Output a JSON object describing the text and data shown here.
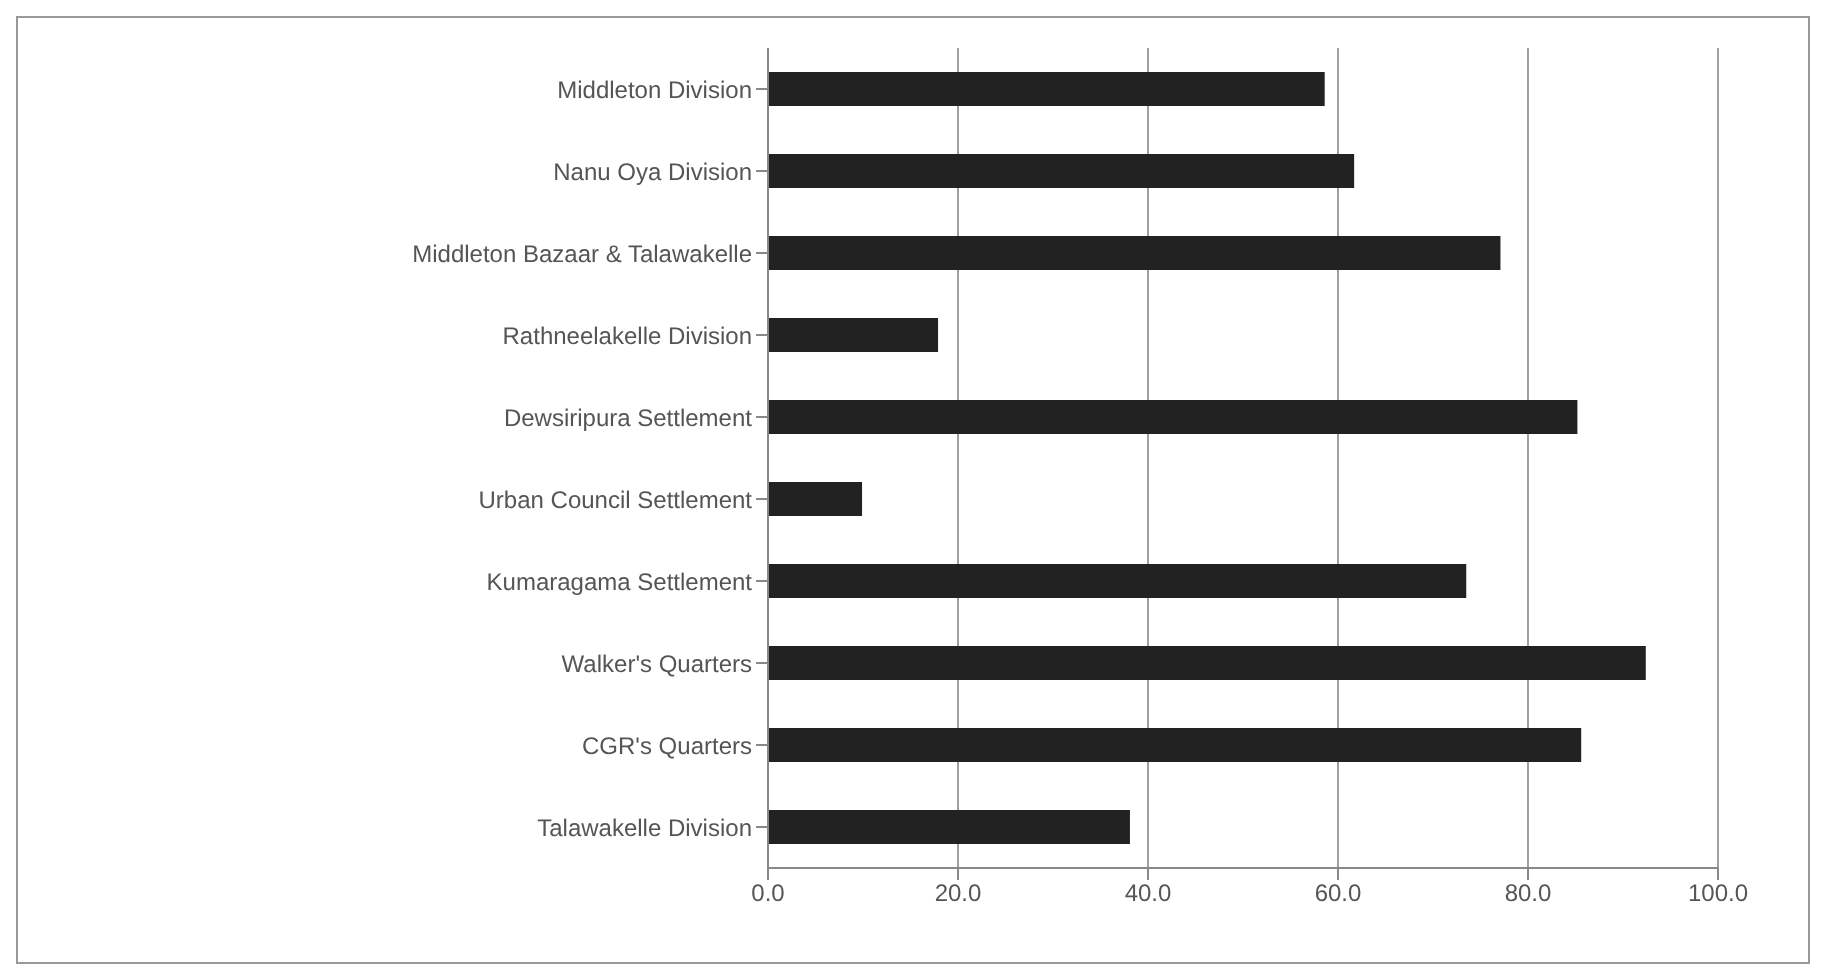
{
  "chart_data": {
    "type": "bar",
    "orientation": "horizontal",
    "categories": [
      "Middleton Division",
      "Nanu Oya Division",
      "Middleton Bazaar & Talawakelle",
      "Rathneelakelle Division",
      "Dewsiripura Settlement",
      "Urban Council Settlement",
      "Kumaragama Settlement",
      "Walker's Quarters",
      "CGR's Quarters",
      "Talawakelle Division"
    ],
    "values": [
      58.6,
      61.7,
      77.1,
      17.9,
      85.2,
      9.9,
      73.5,
      92.4,
      85.6,
      38.1
    ],
    "color": "#222222",
    "xlim": [
      0,
      100
    ],
    "xticks": [
      {
        "value": 0,
        "label": "0.0"
      },
      {
        "value": 20,
        "label": "20.0"
      },
      {
        "value": 40,
        "label": "40.0"
      },
      {
        "value": 60,
        "label": "60.0"
      },
      {
        "value": 80,
        "label": "80.0"
      },
      {
        "value": 100,
        "label": "100.0"
      }
    ],
    "grid": "x"
  }
}
